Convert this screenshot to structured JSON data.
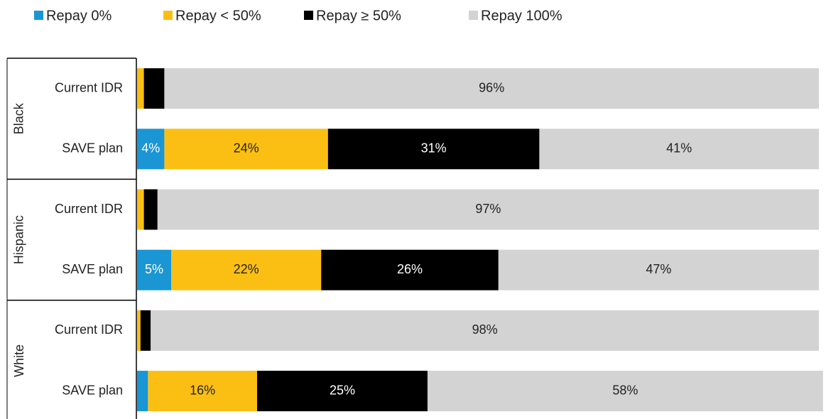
{
  "chart_data": {
    "type": "stacked-barh",
    "groups": [
      "Black",
      "Hispanic",
      "White"
    ],
    "categories": [
      "Current IDR",
      "SAVE plan",
      "Current IDR",
      "SAVE plan",
      "Current IDR",
      "SAVE plan"
    ],
    "xlim": [
      0,
      100
    ],
    "legend": "top-left",
    "series": [
      {
        "name": "Repay 0%",
        "color": "#1a96d4",
        "values": [
          0,
          4,
          0,
          5,
          0,
          1.6
        ],
        "value_labels": [
          null,
          "4%",
          null,
          "5%",
          null,
          null
        ]
      },
      {
        "name": "Repay < 50%",
        "color": "#fbbf14",
        "values": [
          1,
          24,
          1,
          22,
          0.5,
          16
        ],
        "value_labels": [
          null,
          "24%",
          null,
          "22%",
          null,
          "16%"
        ]
      },
      {
        "name": "Repay ≥ 50%",
        "color": "#000000",
        "values": [
          3,
          31,
          2,
          26,
          1.5,
          25
        ],
        "value_labels": [
          null,
          "31%",
          null,
          "26%",
          null,
          "25%"
        ]
      },
      {
        "name": "Repay 100%",
        "color": "#d3d3d3",
        "values": [
          96,
          41,
          97,
          47,
          98,
          58
        ],
        "value_labels": [
          "96%",
          "41%",
          "97%",
          "47%",
          "98%",
          "58%"
        ]
      }
    ]
  }
}
